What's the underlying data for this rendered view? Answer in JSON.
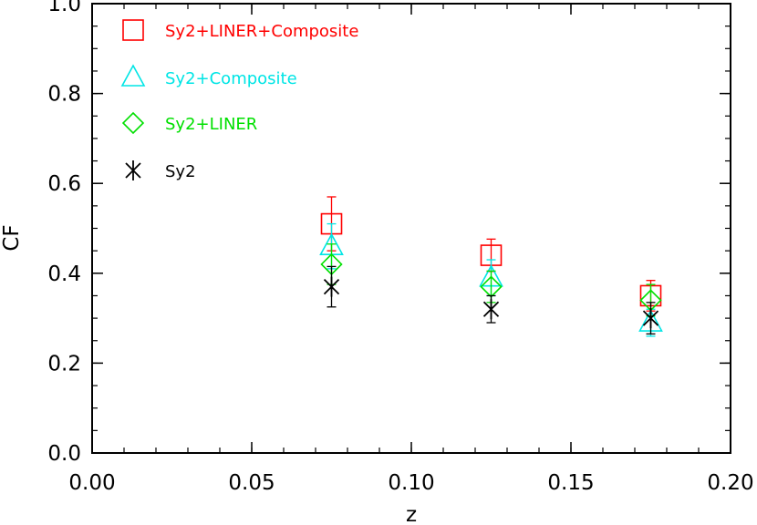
{
  "chart_data": {
    "type": "scatter",
    "title": "",
    "xlabel": "z",
    "ylabel": "CF",
    "xlim": [
      0.0,
      0.2
    ],
    "ylim": [
      0.0,
      1.0
    ],
    "xticks": [
      "0.00",
      "0.05",
      "0.10",
      "0.15",
      "0.20"
    ],
    "yticks": [
      "0.0",
      "0.2",
      "0.4",
      "0.6",
      "0.8",
      "1.0"
    ],
    "grid": false,
    "legend_position": "top-left",
    "series": [
      {
        "name": "Sy2+LINER+Composite",
        "color": "#ff0000",
        "marker": "square",
        "points": [
          {
            "x": 0.075,
            "y": 0.51,
            "err": 0.06
          },
          {
            "x": 0.125,
            "y": 0.44,
            "err": 0.036
          },
          {
            "x": 0.175,
            "y": 0.35,
            "err": 0.034
          }
        ]
      },
      {
        "name": "Sy2+Composite",
        "color": "#00e5e5",
        "marker": "triangle",
        "points": [
          {
            "x": 0.075,
            "y": 0.46,
            "err": 0.05
          },
          {
            "x": 0.125,
            "y": 0.39,
            "err": 0.04
          },
          {
            "x": 0.175,
            "y": 0.29,
            "err": 0.03
          }
        ]
      },
      {
        "name": "Sy2+LINER",
        "color": "#00e000",
        "marker": "diamond",
        "points": [
          {
            "x": 0.075,
            "y": 0.42,
            "err": 0.045
          },
          {
            "x": 0.125,
            "y": 0.37,
            "err": 0.035
          },
          {
            "x": 0.175,
            "y": 0.34,
            "err": 0.035
          }
        ]
      },
      {
        "name": "Sy2",
        "color": "#000000",
        "marker": "asterisk",
        "points": [
          {
            "x": 0.075,
            "y": 0.37,
            "err": 0.045
          },
          {
            "x": 0.125,
            "y": 0.32,
            "err": 0.03
          },
          {
            "x": 0.175,
            "y": 0.3,
            "err": 0.035
          }
        ]
      }
    ]
  }
}
